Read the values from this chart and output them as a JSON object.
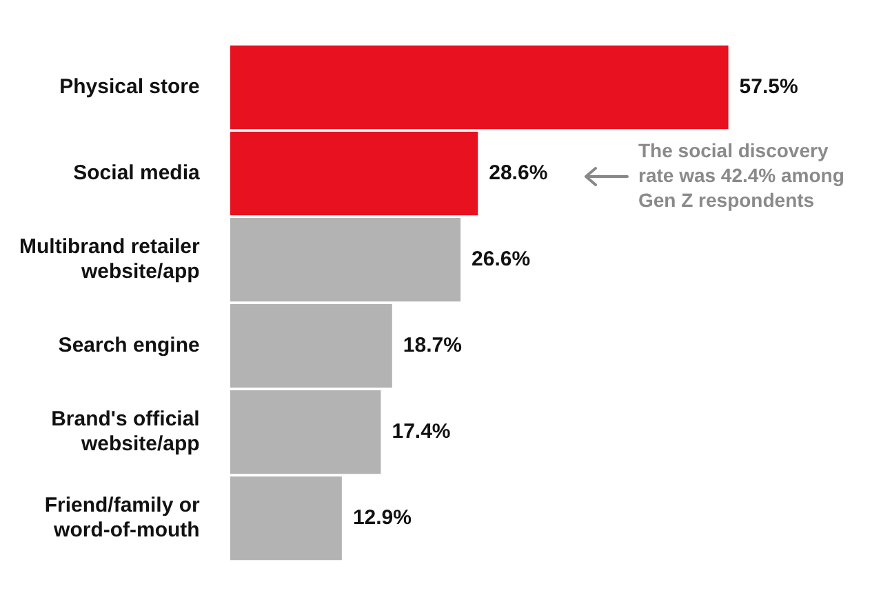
{
  "chart_data": {
    "type": "bar",
    "orientation": "horizontal",
    "categories": [
      "Physical store",
      "Social media",
      "Multibrand retailer website/app",
      "Search engine",
      "Brand's official website/app",
      "Friend/family or word-of-mouth"
    ],
    "values": [
      57.5,
      28.6,
      26.6,
      18.7,
      17.4,
      12.9
    ],
    "colors": [
      "#e8111f",
      "#e8111f",
      "#b3b3b3",
      "#b3b3b3",
      "#b3b3b3",
      "#b3b3b3"
    ],
    "value_labels": [
      "57.5%",
      "28.6%",
      "26.6%",
      "18.7%",
      "17.4%",
      "12.9%"
    ],
    "annotations": [
      "The social discovery rate was 42.4% among Gen Z respondents"
    ],
    "grid": false,
    "legend": false,
    "tick_labels": "y"
  }
}
